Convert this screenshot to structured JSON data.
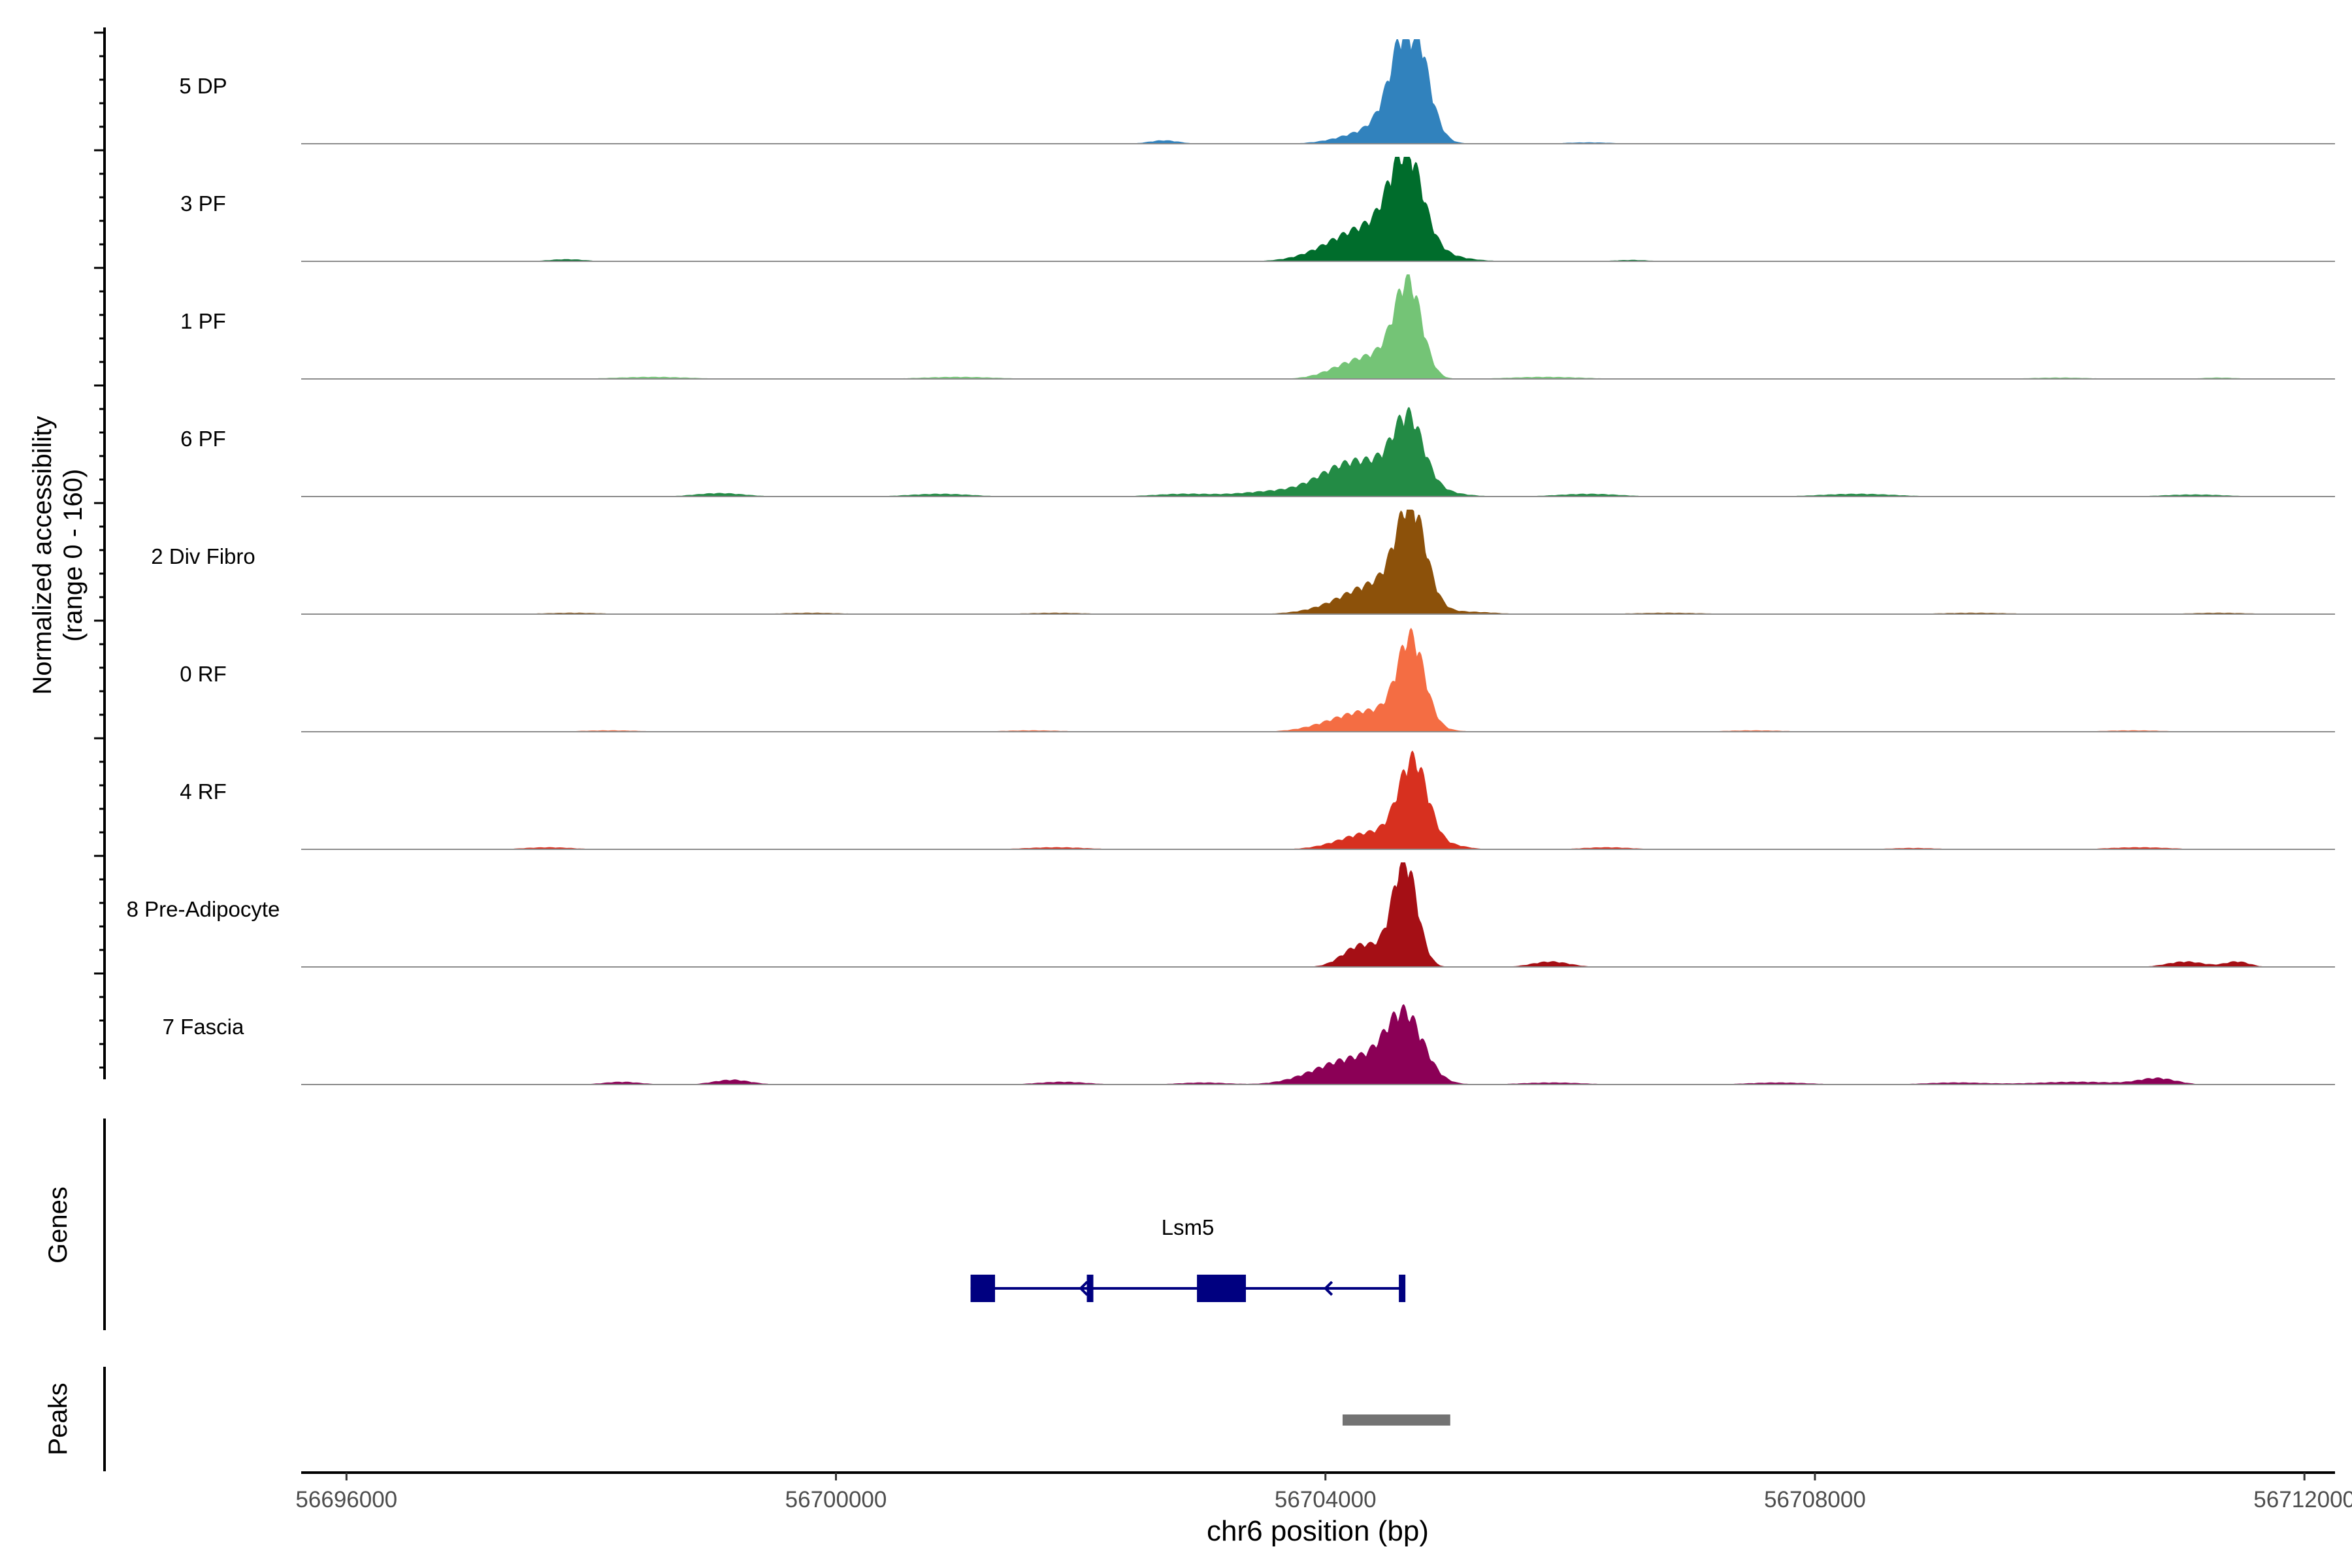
{
  "chart_data": {
    "type": "area",
    "y_axis_title": [
      "Normalized accessibility",
      "(range 0 - 160)"
    ],
    "ylim": [
      0,
      160
    ],
    "x_axis_title": "chr6 position (bp)",
    "xlim": [
      56695630,
      56712250
    ],
    "x_ticks": [
      56696000,
      56700000,
      56704000,
      56708000,
      56712000
    ],
    "x_tick_labels": [
      "56696000",
      "56700000",
      "56704000",
      "56708000",
      "56712000"
    ],
    "grid": false,
    "legend": "none",
    "tracks": [
      {
        "name": "5 DP",
        "color": "#3182bd",
        "peaks": [
          [
            56704580,
            50,
            120
          ],
          [
            56704720,
            150,
            120
          ],
          [
            56704440,
            22,
            260
          ],
          [
            56702680,
            5,
            120
          ],
          [
            56706150,
            2,
            200
          ]
        ]
      },
      {
        "name": "3 PF",
        "color": "#006d2c",
        "peaks": [
          [
            56704660,
            130,
            130
          ],
          [
            56704460,
            45,
            330
          ],
          [
            56704180,
            12,
            260
          ],
          [
            56697800,
            3,
            150
          ],
          [
            56706500,
            2,
            150
          ]
        ]
      },
      {
        "name": "1 PF",
        "color": "#74c476",
        "peaks": [
          [
            56704680,
            130,
            110
          ],
          [
            56704260,
            25,
            210
          ],
          [
            56704530,
            22,
            160
          ],
          [
            56698500,
            3,
            300
          ],
          [
            56701000,
            3,
            300
          ],
          [
            56705800,
            3,
            300
          ],
          [
            56710000,
            2,
            250
          ],
          [
            56711300,
            2,
            150
          ]
        ]
      },
      {
        "name": "6 PF",
        "color": "#238b45",
        "peaks": [
          [
            56704680,
            90,
            120
          ],
          [
            56704420,
            45,
            320
          ],
          [
            56704100,
            18,
            220
          ],
          [
            56703550,
            7,
            250
          ],
          [
            56699050,
            5,
            200
          ],
          [
            56700850,
            4,
            250
          ],
          [
            56702850,
            4,
            250
          ],
          [
            56706150,
            4,
            250
          ],
          [
            56708350,
            4,
            300
          ],
          [
            56711100,
            3,
            250
          ]
        ]
      },
      {
        "name": "2 Div Fibro",
        "color": "#8c510a",
        "peaks": [
          [
            56704700,
            140,
            120
          ],
          [
            56704450,
            40,
            260
          ],
          [
            56704150,
            8,
            280
          ],
          [
            56705200,
            3,
            200
          ],
          [
            56697850,
            2,
            250
          ],
          [
            56699800,
            2,
            250
          ],
          [
            56701800,
            2,
            250
          ],
          [
            56706800,
            2,
            300
          ],
          [
            56709300,
            2,
            300
          ],
          [
            56711300,
            2,
            250
          ]
        ]
      },
      {
        "name": "0 RF",
        "color": "#f46d43",
        "peaks": [
          [
            56704700,
            125,
            110
          ],
          [
            56704420,
            28,
            280
          ],
          [
            56704100,
            7,
            240
          ],
          [
            56698150,
            2,
            250
          ],
          [
            56701600,
            2,
            250
          ],
          [
            56707500,
            2,
            250
          ],
          [
            56710600,
            2,
            250
          ]
        ]
      },
      {
        "name": "4 RF",
        "color": "#d7301f",
        "peaks": [
          [
            56704720,
            125,
            120
          ],
          [
            56704380,
            25,
            250
          ],
          [
            56705050,
            5,
            120
          ],
          [
            56697650,
            3,
            200
          ],
          [
            56701800,
            3,
            250
          ],
          [
            56706300,
            3,
            200
          ],
          [
            56708800,
            2,
            200
          ],
          [
            56710650,
            3,
            250
          ]
        ]
      },
      {
        "name": "8 Pre-Adipocyte",
        "color": "#a50f15",
        "peaks": [
          [
            56704650,
            150,
            100
          ],
          [
            56704270,
            27,
            140
          ],
          [
            56704490,
            14,
            160
          ],
          [
            56705840,
            8,
            150
          ],
          [
            56711030,
            8,
            150
          ],
          [
            56711450,
            8,
            100
          ]
        ]
      },
      {
        "name": "7 Fascia",
        "color": "#8b0056",
        "peaks": [
          [
            56704650,
            90,
            150
          ],
          [
            56704320,
            35,
            300
          ],
          [
            56704000,
            9,
            250
          ],
          [
            56699150,
            7,
            150
          ],
          [
            56698250,
            4,
            150
          ],
          [
            56701850,
            4,
            200
          ],
          [
            56703000,
            3,
            200
          ],
          [
            56705850,
            3,
            250
          ],
          [
            56707700,
            3,
            250
          ],
          [
            56709150,
            3,
            250
          ],
          [
            56710150,
            4,
            350
          ],
          [
            56710800,
            9,
            150
          ]
        ]
      }
    ],
    "genes_track": {
      "title": "Genes",
      "gene_name": "Lsm5",
      "strand": "-",
      "color": "#000080",
      "start": 56701100,
      "end": 56704650,
      "exons": [
        [
          56701100,
          56701300
        ],
        [
          56702050,
          56702100
        ],
        [
          56702950,
          56703350
        ],
        [
          56704600,
          56704650
        ]
      ]
    },
    "peaks_track": {
      "title": "Peaks",
      "color": "#737373",
      "regions": [
        [
          56704140,
          56705020
        ]
      ]
    }
  }
}
